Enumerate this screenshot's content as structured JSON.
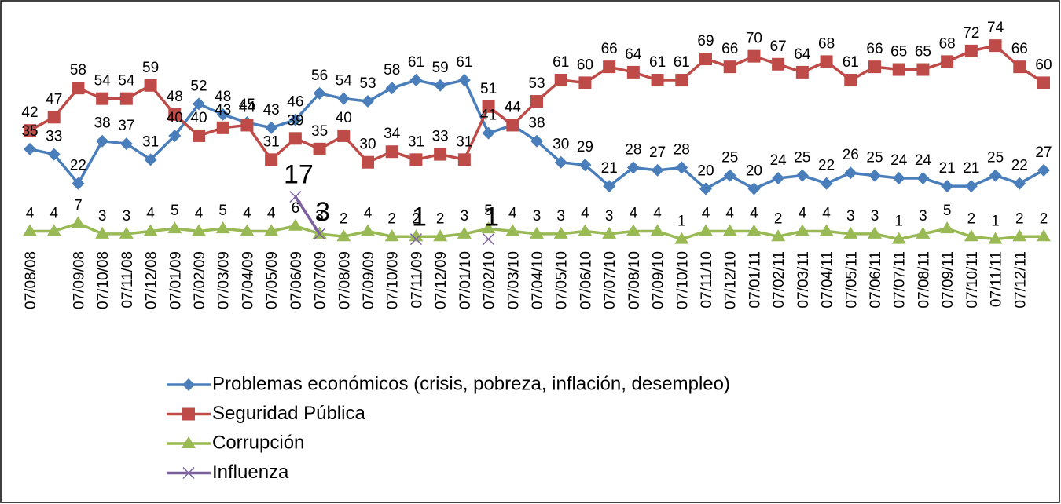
{
  "chart_data": {
    "type": "line",
    "categories": [
      "07/08/08",
      null,
      "07/09/08",
      "07/10/08",
      "07/11/08",
      "07/12/08",
      "07/01/09",
      "07/02/09",
      "07/03/09",
      "07/04/09",
      "07/05/09",
      "07/06/09",
      "07/07/09",
      "07/08/09",
      "07/09/09",
      "07/10/09",
      "07/11/09",
      "07/12/09",
      "07/01/10",
      "07/02/10",
      "07/03/10",
      "07/04/10",
      "07/05/10",
      "07/06/10",
      "07/07/10",
      "07/08/10",
      "07/09/10",
      "07/10/10",
      "07/11/10",
      "07/12/10",
      "07/01/11",
      "07/02/11",
      "07/03/11",
      "07/04/11",
      "07/05/11",
      "07/06/11",
      "07/07/11",
      "07/08/11",
      "07/09/11",
      "07/10/11",
      "07/11/11",
      "07/12/11",
      null
    ],
    "ylim": [
      0,
      85
    ],
    "series": [
      {
        "name": "Problemas económicos (crisis, pobreza, inflación, desempleo)",
        "color": "#4a7ebb",
        "marker": "diamond",
        "values": [
          35,
          33,
          22,
          38,
          37,
          31,
          40,
          52,
          48,
          45,
          43,
          46,
          56,
          54,
          53,
          58,
          61,
          59,
          61,
          41,
          44,
          38,
          30,
          29,
          21,
          28,
          27,
          28,
          20,
          25,
          20,
          24,
          25,
          22,
          26,
          25,
          24,
          24,
          21,
          21,
          25,
          22,
          27
        ]
      },
      {
        "name": "Seguridad Pública",
        "color": "#be4b48",
        "marker": "square",
        "values": [
          42,
          47,
          58,
          54,
          54,
          59,
          48,
          40,
          43,
          44,
          31,
          39,
          35,
          40,
          30,
          34,
          31,
          33,
          31,
          51,
          44,
          53,
          61,
          60,
          66,
          64,
          61,
          61,
          69,
          66,
          70,
          67,
          64,
          68,
          61,
          66,
          65,
          65,
          68,
          72,
          74,
          66,
          60
        ]
      },
      {
        "name": "Corrupción",
        "color": "#98b954",
        "marker": "triangle",
        "values": [
          4,
          4,
          7,
          3,
          3,
          4,
          5,
          4,
          5,
          4,
          4,
          6,
          3,
          2,
          4,
          2,
          2,
          2,
          3,
          5,
          4,
          3,
          3,
          4,
          3,
          4,
          4,
          1,
          4,
          4,
          4,
          2,
          4,
          4,
          3,
          3,
          1,
          3,
          5,
          2,
          1,
          2,
          2
        ]
      },
      {
        "name": "Influenza",
        "color": "#7d60a0",
        "marker": "x",
        "values": [
          null,
          null,
          null,
          null,
          null,
          null,
          null,
          null,
          null,
          null,
          null,
          17,
          3,
          null,
          null,
          null,
          1,
          null,
          null,
          1,
          null,
          null,
          null,
          null,
          null,
          null,
          null,
          null,
          null,
          null,
          null,
          null,
          null,
          null,
          null,
          null,
          null,
          null,
          null,
          null,
          null,
          null,
          null
        ]
      }
    ]
  }
}
